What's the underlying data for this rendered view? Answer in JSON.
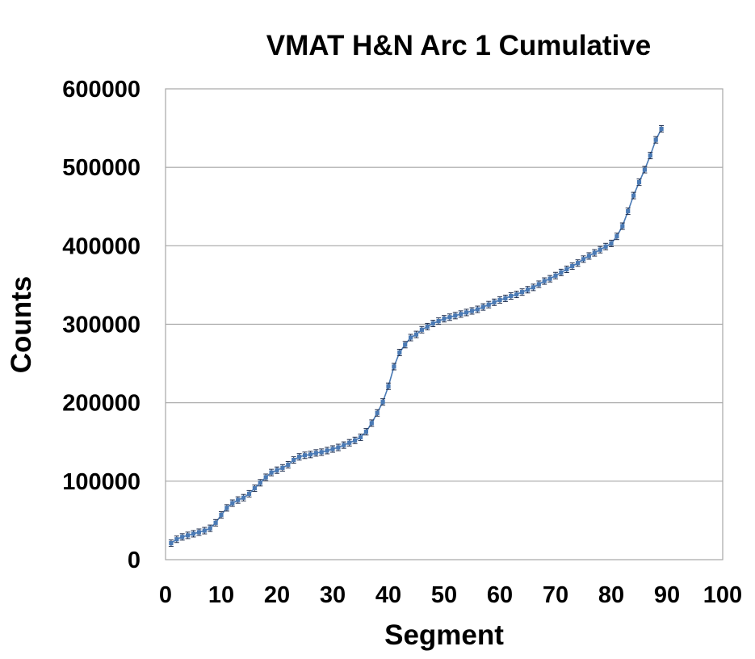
{
  "chart_data": {
    "type": "line",
    "title": "VMAT H&N Arc 1 Cumulative",
    "xlabel": "Segment",
    "ylabel": "Counts",
    "xlim": [
      0,
      100
    ],
    "ylim": [
      0,
      600000
    ],
    "x_ticks": [
      "0",
      "10",
      "20",
      "30",
      "40",
      "50",
      "60",
      "70",
      "80",
      "90",
      "100"
    ],
    "y_ticks": [
      "0",
      "100000",
      "200000",
      "300000",
      "400000",
      "500000",
      "600000"
    ],
    "grid": "horizontal",
    "legend": "none",
    "series_color": "#4a7ab5",
    "series": [
      {
        "x": [
          1,
          2,
          3,
          4,
          5,
          6,
          7,
          8,
          9,
          10,
          11,
          12,
          13,
          14,
          15,
          16,
          17,
          18,
          19,
          20,
          21,
          22,
          23,
          24,
          25,
          26,
          27,
          28,
          29,
          30,
          31,
          32,
          33,
          34,
          35,
          36,
          37,
          38,
          39,
          40,
          41,
          42,
          43,
          44,
          45,
          46,
          47,
          48,
          49,
          50,
          51,
          52,
          53,
          54,
          55,
          56,
          57,
          58,
          59,
          60,
          61,
          62,
          63,
          64,
          65,
          66,
          67,
          68,
          69,
          70,
          71,
          72,
          73,
          74,
          75,
          76,
          77,
          78,
          79,
          80,
          81,
          82,
          83,
          84,
          85,
          86,
          87,
          88,
          89
        ],
        "values": [
          21000,
          26000,
          29000,
          31000,
          33000,
          35000,
          37000,
          40000,
          47000,
          57000,
          66000,
          72000,
          76000,
          79000,
          84000,
          91000,
          98000,
          105000,
          111000,
          114000,
          117000,
          121000,
          127000,
          131000,
          133000,
          134000,
          136000,
          137000,
          139000,
          141000,
          143000,
          146000,
          149000,
          152000,
          156000,
          163000,
          174000,
          187000,
          201000,
          221000,
          246000,
          264000,
          274000,
          283000,
          287000,
          293000,
          297000,
          301000,
          304000,
          307000,
          309000,
          311000,
          313000,
          315000,
          317000,
          319000,
          322000,
          325000,
          328000,
          331000,
          333000,
          336000,
          338000,
          341000,
          344000,
          347000,
          351000,
          355000,
          358000,
          362000,
          366000,
          370000,
          374000,
          378000,
          383000,
          387000,
          391000,
          395000,
          399000,
          403000,
          412000,
          425000,
          444000,
          464000,
          481000,
          497000,
          515000,
          535000,
          549000
        ]
      }
    ]
  }
}
